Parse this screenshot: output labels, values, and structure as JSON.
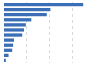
{
  "chart_data": {
    "type": "bar",
    "orientation": "horizontal",
    "categories": [
      null,
      null,
      null,
      null,
      null,
      null,
      null,
      null,
      null,
      null,
      null,
      null
    ],
    "values": [
      87,
      51,
      47,
      30,
      24,
      22,
      20,
      11,
      10,
      9,
      5,
      2
    ],
    "color": "#3a6fb8",
    "xlim": [
      0,
      100
    ],
    "xticks": [
      0,
      25,
      50,
      75,
      100
    ],
    "grid": true,
    "tick_labels": false
  }
}
